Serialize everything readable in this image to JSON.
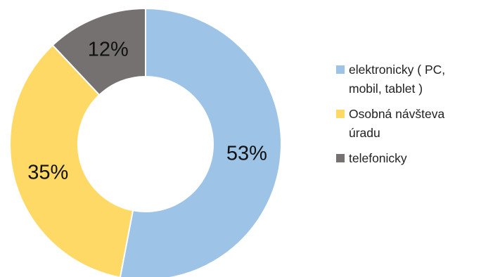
{
  "chart_data": {
    "type": "donut",
    "title": "",
    "legend_position": "right",
    "slices": [
      {
        "label": "elektronicky ( PC, mobil, tablet )",
        "legend_lines": [
          "elektronicky ( PC,",
          "mobil, tablet )"
        ],
        "value": 53,
        "display": "53%",
        "color": "#9dc3e6"
      },
      {
        "label": "Osobná návšteva úradu",
        "legend_lines": [
          "Osobná návšteva",
          "úradu"
        ],
        "value": 35,
        "display": "35%",
        "color": "#ffd966"
      },
      {
        "label": "telefonicky",
        "legend_lines": [
          "telefonicky"
        ],
        "value": 12,
        "display": "12%",
        "color": "#767171"
      }
    ]
  }
}
